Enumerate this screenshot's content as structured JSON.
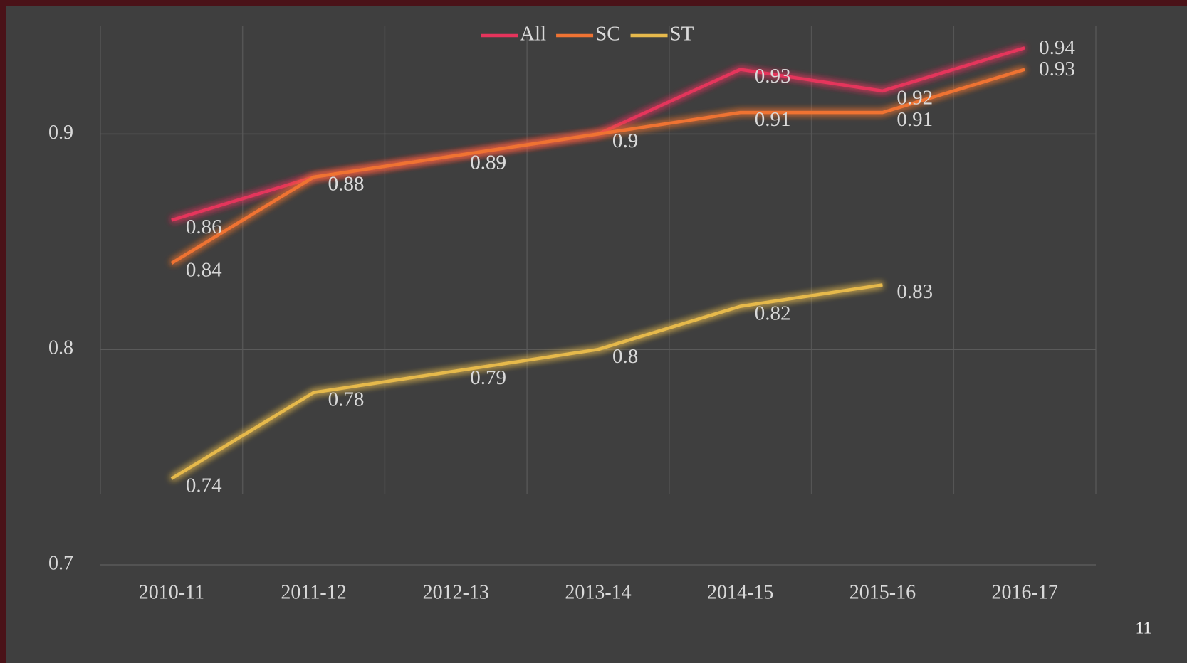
{
  "chart_data": {
    "type": "line",
    "categories": [
      "2010-11",
      "2011-12",
      "2012-13",
      "2013-14",
      "2014-15",
      "2015-16",
      "2016-17"
    ],
    "series": [
      {
        "name": "All",
        "color": "#e5345c",
        "values": [
          0.86,
          0.88,
          0.89,
          0.9,
          0.93,
          0.92,
          0.94
        ]
      },
      {
        "name": "SC",
        "color": "#ef7333",
        "values": [
          0.84,
          0.88,
          0.89,
          0.9,
          0.91,
          0.91,
          0.93
        ]
      },
      {
        "name": "ST",
        "color": "#e6b94c",
        "values": [
          0.74,
          0.78,
          0.79,
          0.8,
          0.82,
          0.83,
          null
        ]
      }
    ],
    "ylim": [
      0.7,
      0.95
    ],
    "yticks": [
      0.7,
      0.8,
      0.9
    ],
    "grid": true,
    "legend": "top"
  },
  "page_number": "11"
}
